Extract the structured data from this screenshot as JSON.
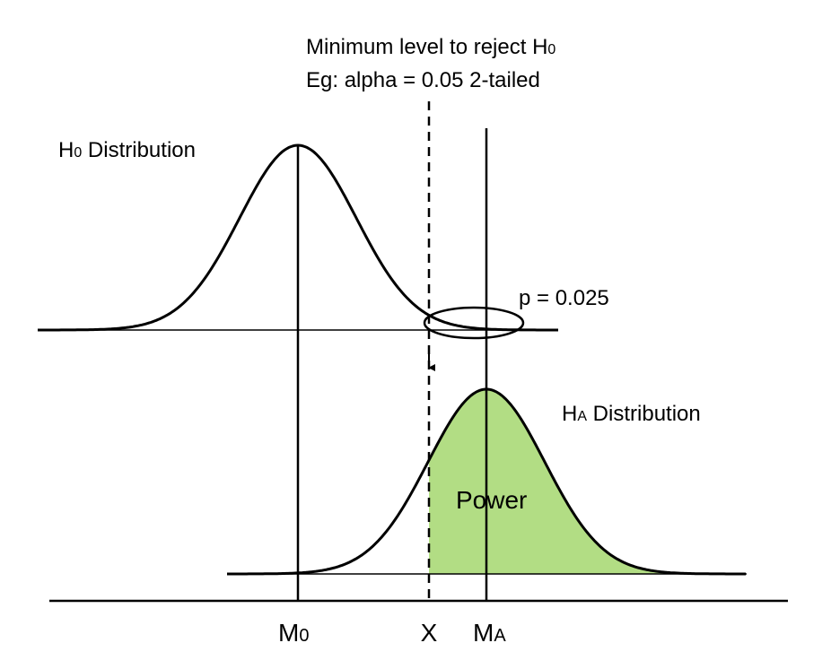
{
  "title": {
    "line1": {
      "text": "Minimum level to reject H",
      "sub": "0"
    },
    "line2": "Eg: alpha = 0.05 2-tailed"
  },
  "h0_label": {
    "main": "H",
    "sub": "0",
    "rest": " Distribution"
  },
  "ha_label": {
    "main": "H",
    "sub": "A",
    "rest": " Distribution"
  },
  "p_label": "p = 0.025",
  "power_label": "Power",
  "axis_labels": {
    "m0": {
      "main": "M",
      "sub": "0"
    },
    "x": "X",
    "ma": {
      "main": "M",
      "sub": "A"
    }
  }
}
